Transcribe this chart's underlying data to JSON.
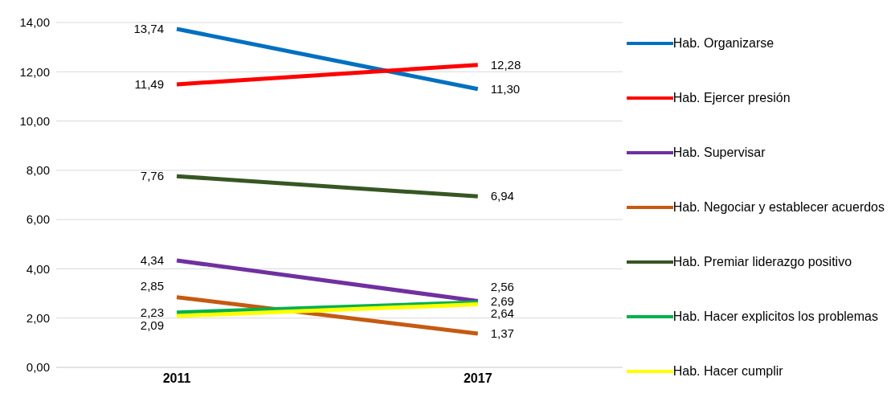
{
  "chart_data": {
    "type": "line",
    "categories": [
      "2011",
      "2017"
    ],
    "series": [
      {
        "name": "Hab. Organizarse",
        "color": "#0070c0",
        "values": [
          13.74,
          11.3
        ],
        "value_labels": [
          "13,74",
          "11,30"
        ]
      },
      {
        "name": "Hab. Ejercer presión",
        "color": "#ff0000",
        "values": [
          11.49,
          12.28
        ],
        "value_labels": [
          "11,49",
          "12,28"
        ]
      },
      {
        "name": "Hab. Supervisar",
        "color": "#7030a0",
        "values": [
          4.34,
          2.69
        ],
        "value_labels": [
          "4,34",
          "2,69"
        ]
      },
      {
        "name": "Hab. Negociar y establecer acuerdos",
        "color": "#c55a11",
        "values": [
          2.85,
          1.37
        ],
        "value_labels": [
          "2,85",
          "1,37"
        ]
      },
      {
        "name": "Hab. Premiar liderazgo positivo",
        "color": "#375623",
        "values": [
          7.76,
          6.94
        ],
        "value_labels": [
          "7,76",
          "6,94"
        ]
      },
      {
        "name": "Hab. Hacer explicitos los problemas",
        "color": "#00b050",
        "values": [
          2.23,
          2.64
        ],
        "value_labels": [
          "2,23",
          "2,64"
        ]
      },
      {
        "name": "Hab. Hacer cumplir",
        "color": "#ffff00",
        "values": [
          2.09,
          2.56
        ],
        "value_labels": [
          "2,09",
          "2,56"
        ]
      }
    ],
    "ylim": [
      0,
      14
    ],
    "yticks": [
      {
        "value": 0,
        "label": "0,00"
      },
      {
        "value": 2,
        "label": "2,00"
      },
      {
        "value": 4,
        "label": "4,00"
      },
      {
        "value": 6,
        "label": "6,00"
      },
      {
        "value": 8,
        "label": "8,00"
      },
      {
        "value": 10,
        "label": "10,00"
      },
      {
        "value": 12,
        "label": "12,00"
      },
      {
        "value": 14,
        "label": "14,00"
      }
    ],
    "grid": "y",
    "legend": "right",
    "marker": "none",
    "line_style": "solid"
  }
}
